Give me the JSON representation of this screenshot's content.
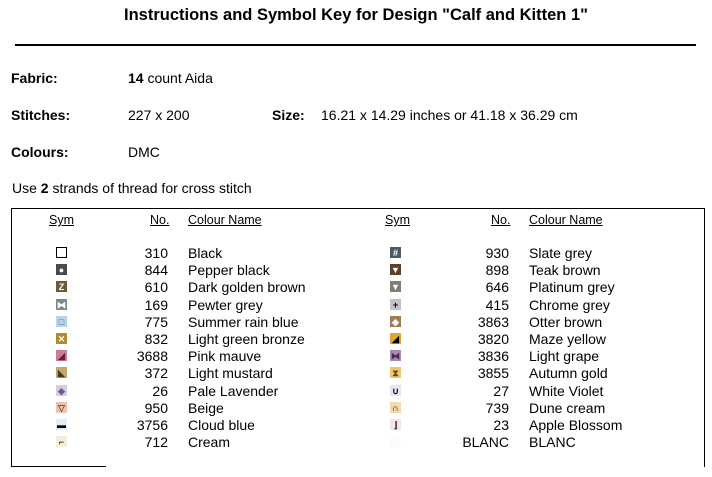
{
  "title": "Instructions and Symbol Key for Design \"Calf and Kitten 1\"",
  "fabric": {
    "label": "Fabric:",
    "count": "14",
    "rest": " count Aida"
  },
  "stitches": {
    "label": "Stitches:",
    "value": "227 x 200"
  },
  "size": {
    "label": "Size:",
    "value": "16.21 x 14.29 inches or 41.18 x 36.29 cm"
  },
  "colours": {
    "label": "Colours:",
    "value": "DMC"
  },
  "note": {
    "pre": "Use ",
    "num": "2",
    "post": " strands of thread for cross stitch"
  },
  "headers": {
    "sym": "Sym",
    "no": "No.",
    "name": "Colour Name"
  },
  "left": [
    {
      "no": "310",
      "name": "Black",
      "glyph": "",
      "bg": "#ffffff",
      "fg": "#000000",
      "border": "#000000",
      "icon": "empty-square-icon"
    },
    {
      "no": "844",
      "name": "Pepper black",
      "glyph": "●",
      "bg": "#4a4a4a",
      "fg": "#ffffff",
      "border": "#4a4a4a",
      "icon": "circle-icon"
    },
    {
      "no": "610",
      "name": "Dark golden brown",
      "glyph": "Z",
      "bg": "#6e5a3a",
      "fg": "#ffffff",
      "border": "#6e5a3a",
      "icon": "z-icon"
    },
    {
      "no": "169",
      "name": "Pewter grey",
      "glyph": "⧓",
      "bg": "#7d8a8c",
      "fg": "#ffffff",
      "border": "#7d8a8c",
      "icon": "bowtie-icon"
    },
    {
      "no": "775",
      "name": "Summer rain blue",
      "glyph": "□",
      "bg": "#b5d3ea",
      "fg": "#4d6f8c",
      "border": "#b5d3ea",
      "icon": "square-icon"
    },
    {
      "no": "832",
      "name": "Light green bronze",
      "glyph": "✕",
      "bg": "#b3892d",
      "fg": "#ffffff",
      "border": "#b3892d",
      "icon": "x-icon"
    },
    {
      "no": "3688",
      "name": "Pink mauve",
      "glyph": "◢",
      "bg": "#c97f92",
      "fg": "#6a1f35",
      "border": "#c97f92",
      "icon": "triangle-icon"
    },
    {
      "no": "372",
      "name": "Light mustard",
      "glyph": "◣",
      "bg": "#c2a96e",
      "fg": "#4a3a1a",
      "border": "#c2a96e",
      "icon": "triangle-icon"
    },
    {
      "no": "26",
      "name": "Pale Lavender",
      "glyph": "◆",
      "bg": "#d6cce6",
      "fg": "#6f5a8e",
      "border": "#d6cce6",
      "icon": "diamond-icon"
    },
    {
      "no": "950",
      "name": "Beige",
      "glyph": "▽",
      "bg": "#efc3b2",
      "fg": "#7a4a3a",
      "border": "#efc3b2",
      "icon": "down-triangle-icon"
    },
    {
      "no": "3756",
      "name": "Cloud blue",
      "glyph": "▬",
      "bg": "#e4eef6",
      "fg": "#000000",
      "border": "#e4eef6",
      "icon": "bar-icon"
    },
    {
      "no": "712",
      "name": "Cream",
      "glyph": "⌐",
      "bg": "#f6eedd",
      "fg": "#000000",
      "border": "#f6eedd",
      "icon": "corner-icon"
    }
  ],
  "right": [
    {
      "no": "930",
      "name": "Slate grey",
      "glyph": "#",
      "bg": "#4a5a66",
      "fg": "#ffffff",
      "border": "#4a5a66",
      "icon": "hash-icon"
    },
    {
      "no": "898",
      "name": "Teak brown",
      "glyph": "▼",
      "bg": "#5c3f2a",
      "fg": "#ffffff",
      "border": "#5c3f2a",
      "icon": "down-triangle-icon"
    },
    {
      "no": "646",
      "name": "Platinum grey",
      "glyph": "▼",
      "bg": "#7e7e76",
      "fg": "#ffffff",
      "border": "#7e7e76",
      "icon": "down-triangle-icon"
    },
    {
      "no": "415",
      "name": "Chrome grey",
      "glyph": "+",
      "bg": "#c2c2c6",
      "fg": "#000000",
      "border": "#c2c2c6",
      "icon": "plus-icon"
    },
    {
      "no": "3863",
      "name": "Otter brown",
      "glyph": "◆",
      "bg": "#a67a55",
      "fg": "#ffffff",
      "border": "#a67a55",
      "icon": "diamond-icon"
    },
    {
      "no": "3820",
      "name": "Maze yellow",
      "glyph": "◢",
      "bg": "#e0a82e",
      "fg": "#000000",
      "border": "#e0a82e",
      "icon": "triangle-icon"
    },
    {
      "no": "3836",
      "name": "Light grape",
      "glyph": "⧓",
      "bg": "#a98ab3",
      "fg": "#4b2a59",
      "border": "#a98ab3",
      "icon": "bowtie-icon"
    },
    {
      "no": "3855",
      "name": "Autumn gold",
      "glyph": "⧗",
      "bg": "#f1c572",
      "fg": "#6a4a10",
      "border": "#f1c572",
      "icon": "hourglass-icon"
    },
    {
      "no": "27",
      "name": "White Violet",
      "glyph": "∪",
      "bg": "#e9e4f3",
      "fg": "#000000",
      "border": "#e9e4f3",
      "icon": "cup-icon"
    },
    {
      "no": "739",
      "name": "Dune cream",
      "glyph": "∩",
      "bg": "#f3d9b0",
      "fg": "#000000",
      "border": "#f3d9b0",
      "icon": "cap-icon"
    },
    {
      "no": "23",
      "name": "Apple Blossom",
      "glyph": "⌋",
      "bg": "#f4e3ea",
      "fg": "#000000",
      "border": "#f4e3ea",
      "icon": "corner-icon"
    },
    {
      "no": "BLANC",
      "name": "BLANC",
      "glyph": "",
      "bg": "#fbfbfb",
      "fg": "#000000",
      "border": "#fbfbfb",
      "icon": "blank-square-icon"
    }
  ]
}
